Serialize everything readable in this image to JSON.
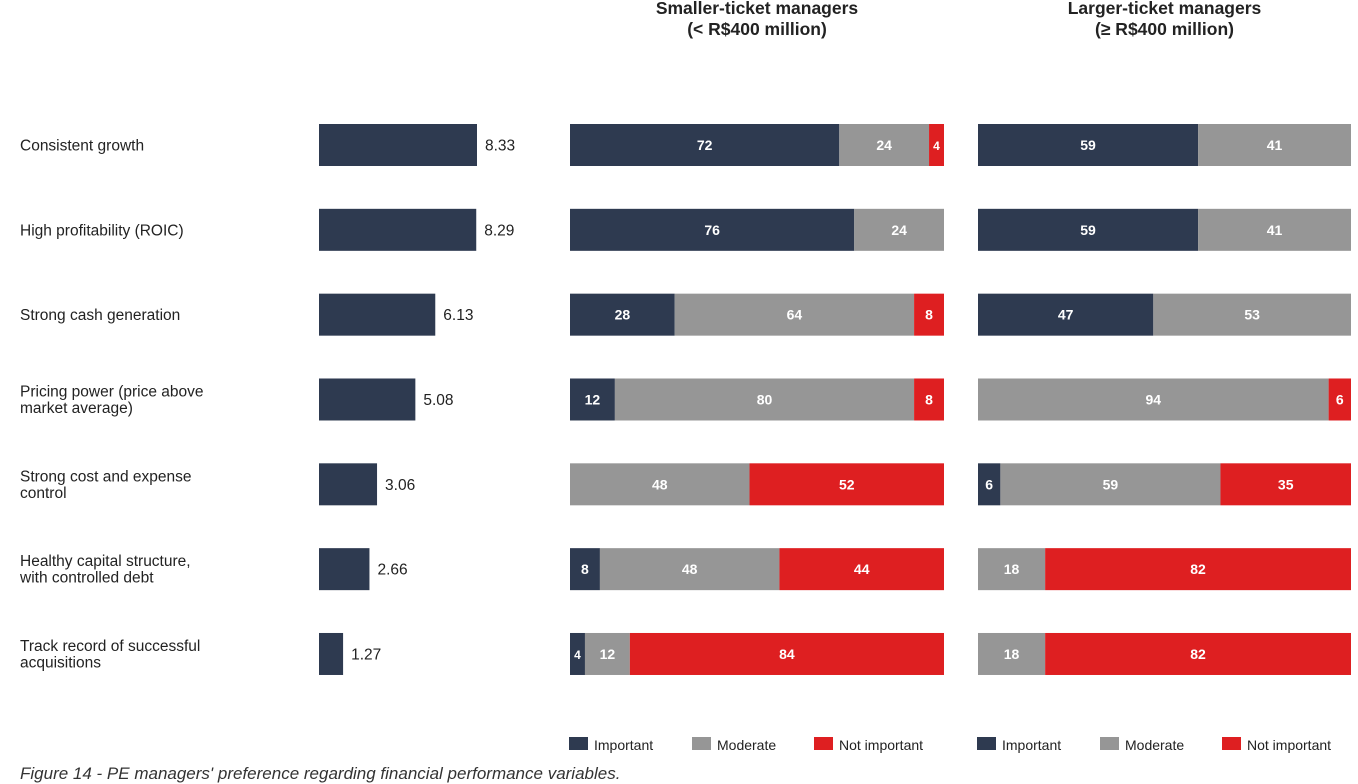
{
  "colors": {
    "important": "#2e3a50",
    "moderate": "#969696",
    "not_important": "#de1f21",
    "score_bar": "#2e3a50",
    "text": "#222222"
  },
  "chart_data": [
    {
      "type": "bar",
      "orientation": "horizontal",
      "title": "",
      "categories": [
        "Consistent growth",
        "High profitability (ROIC)",
        "Strong cash generation",
        "Pricing power (price above market average)",
        "Strong cost and expense control",
        "Healthy capital structure, with controlled debt",
        "Track record of successful acquisitions"
      ],
      "values": [
        8.33,
        8.29,
        6.13,
        5.08,
        3.06,
        2.66,
        1.27
      ],
      "xlim": [
        0,
        8.33
      ],
      "grid": false
    },
    {
      "type": "bar",
      "stacked": true,
      "percent": true,
      "orientation": "horizontal",
      "title": "Smaller-ticket managers\n(< R$400 million)",
      "series": [
        {
          "name": "Important",
          "values": [
            72,
            76,
            28,
            12,
            0,
            8,
            4
          ]
        },
        {
          "name": "Moderate",
          "values": [
            24,
            24,
            64,
            80,
            48,
            48,
            12
          ]
        },
        {
          "name": "Not important",
          "values": [
            4,
            0,
            8,
            8,
            52,
            44,
            84
          ]
        }
      ],
      "legend": "bottom",
      "grid": false
    },
    {
      "type": "bar",
      "stacked": true,
      "percent": true,
      "orientation": "horizontal",
      "title": "Larger-ticket managers\n(≥ R$400 million)",
      "series": [
        {
          "name": "Important",
          "values": [
            59,
            59,
            47,
            0,
            6,
            0,
            0
          ]
        },
        {
          "name": "Moderate",
          "values": [
            41,
            41,
            53,
            94,
            59,
            18,
            18
          ]
        },
        {
          "name": "Not important",
          "values": [
            0,
            0,
            0,
            6,
            35,
            82,
            82
          ]
        }
      ],
      "legend": "bottom",
      "grid": false
    }
  ],
  "caption": "Figure 14 - PE managers' preference regarding financial performance variables."
}
